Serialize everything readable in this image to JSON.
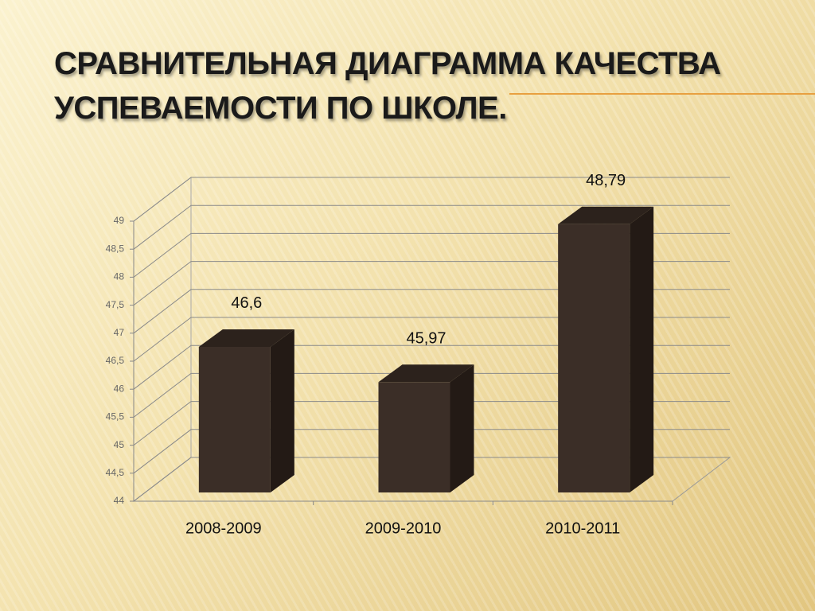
{
  "chart_data": {
    "type": "bar3d",
    "title": "СРАВНИТЕЛЬНАЯ ДИАГРАММА КАЧЕСТВА УСПЕВАЕМОСТИ ПО ШКОЛЕ.",
    "categories": [
      "2008-2009",
      "2009-2010",
      "2010-2011"
    ],
    "values": [
      46.6,
      45.97,
      48.79
    ],
    "value_labels": [
      "46,6",
      "45,97",
      "48,79"
    ],
    "color": "#3b2e27",
    "ylim": [
      44,
      49
    ],
    "yticks": [
      44,
      {
        "value": 44.5,
        "label": "44,5"
      },
      45,
      {
        "value": 45.5,
        "label": "45,5"
      },
      46,
      {
        "value": 46.5,
        "label": "46,5"
      },
      47,
      {
        "value": 47.5,
        "label": "47,5"
      },
      48,
      {
        "value": 48.5,
        "label": "48,5"
      },
      49
    ],
    "grid": true
  }
}
